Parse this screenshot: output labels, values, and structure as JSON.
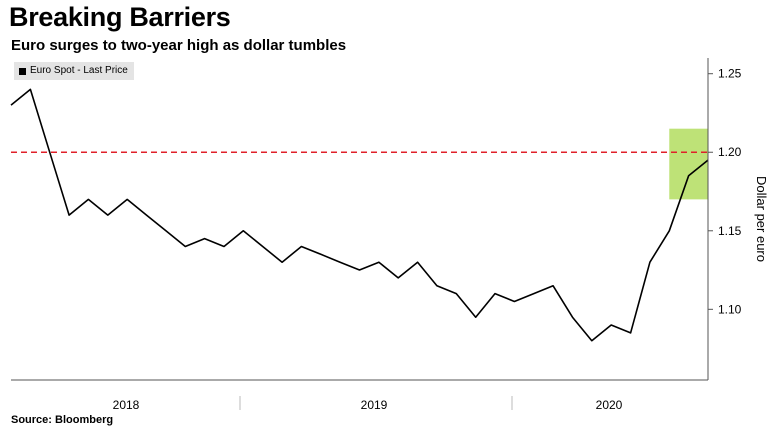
{
  "title": "Breaking Barriers",
  "subtitle": "Euro surges to two-year high as dollar tumbles",
  "source": "Source: Bloomberg",
  "colors": {
    "line": "#000000",
    "reference_line": "#e0202a",
    "highlight": "#a8d84a",
    "axis": "#555555"
  },
  "chart_data": {
    "type": "line",
    "title": "Breaking Barriers",
    "subtitle": "Euro surges to two-year high as dollar tumbles",
    "xlabel": "",
    "ylabel": "Dollar per euro",
    "x_tick_labels": [
      "2018",
      "2019",
      "2020"
    ],
    "y_ticks": [
      1.1,
      1.15,
      1.2,
      1.25
    ],
    "y_tick_labels": [
      "1.10",
      "1.15",
      "1.20",
      "1.25"
    ],
    "ylim": [
      1.055,
      1.26
    ],
    "xlim": [
      "2017-09",
      "2020-09"
    ],
    "grid": false,
    "legend_position": "top-left",
    "reference_line": {
      "y": 1.2,
      "style": "dashed"
    },
    "highlight_region": {
      "x": [
        "2020-07",
        "2020-09"
      ],
      "y": [
        1.17,
        1.215
      ]
    },
    "series": [
      {
        "name": "Euro Spot - Last Price",
        "x": [
          "2017-09",
          "2017-10",
          "2017-11",
          "2017-12",
          "2018-01",
          "2018-02",
          "2018-03",
          "2018-04",
          "2018-05",
          "2018-06",
          "2018-07",
          "2018-08",
          "2018-09",
          "2018-10",
          "2018-11",
          "2018-12",
          "2019-01",
          "2019-02",
          "2019-03",
          "2019-04",
          "2019-05",
          "2019-06",
          "2019-07",
          "2019-08",
          "2019-09",
          "2019-10",
          "2019-11",
          "2019-12",
          "2020-01",
          "2020-02",
          "2020-03",
          "2020-04",
          "2020-05",
          "2020-06",
          "2020-07",
          "2020-08",
          "2020-09"
        ],
        "y": [
          1.23,
          1.24,
          1.2,
          1.16,
          1.17,
          1.16,
          1.17,
          1.16,
          1.15,
          1.14,
          1.145,
          1.14,
          1.15,
          1.14,
          1.13,
          1.14,
          1.135,
          1.13,
          1.125,
          1.13,
          1.12,
          1.13,
          1.115,
          1.11,
          1.095,
          1.11,
          1.105,
          1.11,
          1.115,
          1.095,
          1.08,
          1.09,
          1.085,
          1.13,
          1.15,
          1.185,
          1.195
        ]
      }
    ]
  }
}
